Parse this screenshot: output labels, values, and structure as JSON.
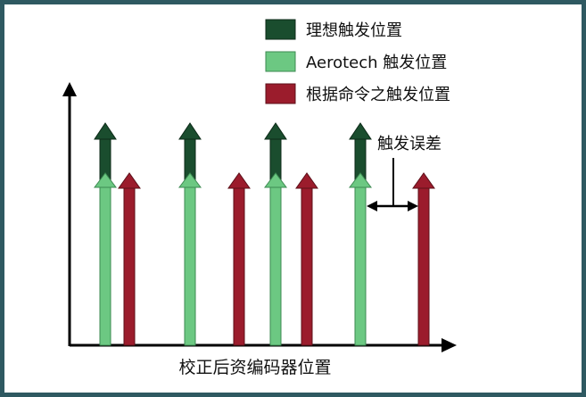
{
  "frame_color": "#2e5961",
  "colors": {
    "ideal": "#1a4d2e",
    "aerotech": "#6cc882",
    "commanded": "#9b1c2c",
    "axis": "#000000"
  },
  "legend": [
    {
      "label": "理想触发位置",
      "series": "ideal"
    },
    {
      "label": "Aerotech 触发位置",
      "series": "aerotech"
    },
    {
      "label": "根据命令之触发位置",
      "series": "commanded"
    }
  ],
  "annotation": {
    "label": "触发误差"
  },
  "axis": {
    "xlabel": "校正后资编码器位置"
  },
  "diagram": {
    "groups": [
      {
        "aerotech": true,
        "ideal": true,
        "commanded_after": true
      },
      {
        "aerotech": true,
        "ideal": true,
        "commanded_after": true
      },
      {
        "aerotech": true,
        "ideal": true,
        "commanded_after": true
      },
      {
        "aerotech": true,
        "ideal": true,
        "commanded_after": true
      }
    ]
  }
}
